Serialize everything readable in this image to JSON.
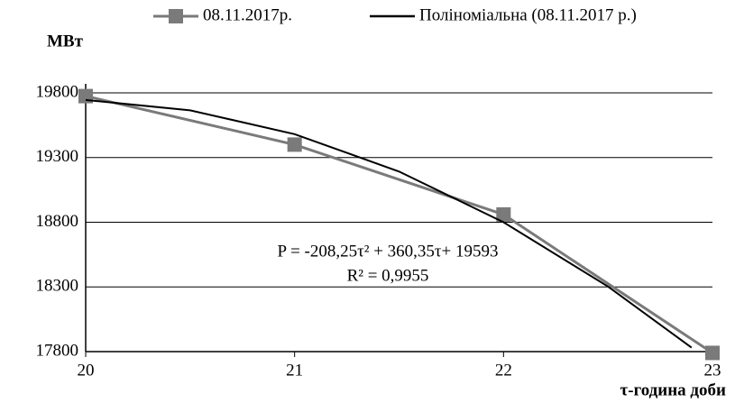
{
  "chart_data": {
    "type": "line",
    "y_label": "МВт",
    "x_label": "τ-година доби",
    "annotations": [
      "P = -208,25τ² + 360,35τ+ 19593",
      "R² = 0,9955"
    ],
    "series": [
      {
        "name": "08.11.2017р.",
        "color": "#7a7a7a",
        "marker": "square",
        "x": [
          20,
          21,
          22,
          23
        ],
        "values": [
          19775,
          19400,
          18860,
          17790
        ]
      },
      {
        "name": "Поліноміальна (08.11.2017 р.)",
        "color": "#000000",
        "marker": "none",
        "x": [
          20,
          20.5,
          21,
          21.5,
          22,
          22.5,
          22.9
        ],
        "values": [
          19745,
          19665,
          19481,
          19192,
          18800,
          18303,
          17831
        ]
      }
    ],
    "xlim": [
      20,
      23
    ],
    "xticks": [
      20,
      21,
      22,
      23
    ],
    "ylim": [
      17800,
      19800
    ],
    "yticks": [
      17800,
      18300,
      18800,
      19300,
      19800
    ],
    "grid": true
  }
}
